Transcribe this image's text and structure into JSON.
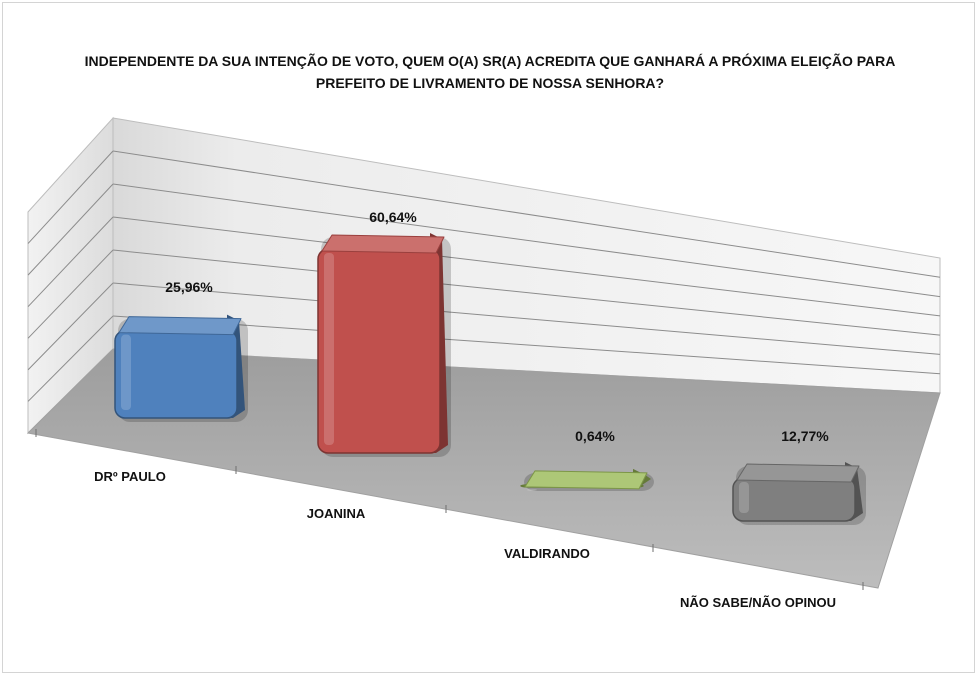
{
  "chart_data": {
    "type": "bar",
    "title_lines": [
      "INDEPENDENTE DA SUA INTENÇÃO DE VOTO, QUEM O(A) SR(A) ACREDITA QUE GANHARÁ A PRÓXIMA ELEIÇÃO PARA",
      "PREFEITO DE LIVRAMENTO DE NOSSA SENHORA?"
    ],
    "categories": [
      "DRº PAULO",
      "JOANINA",
      "VALDIRANDO",
      "NÃO SABE/NÃO OPINOU"
    ],
    "values": [
      25.96,
      60.64,
      0.64,
      12.77
    ],
    "value_labels": [
      "25,96%",
      "60,64%",
      "0,64%",
      "12,77%"
    ],
    "colors": [
      "#4f81bd",
      "#c0504d",
      "#9bbb59",
      "#7f7f7f"
    ],
    "ylim": [
      0,
      70
    ],
    "grid": true,
    "style": "3d-perspective-bars"
  }
}
